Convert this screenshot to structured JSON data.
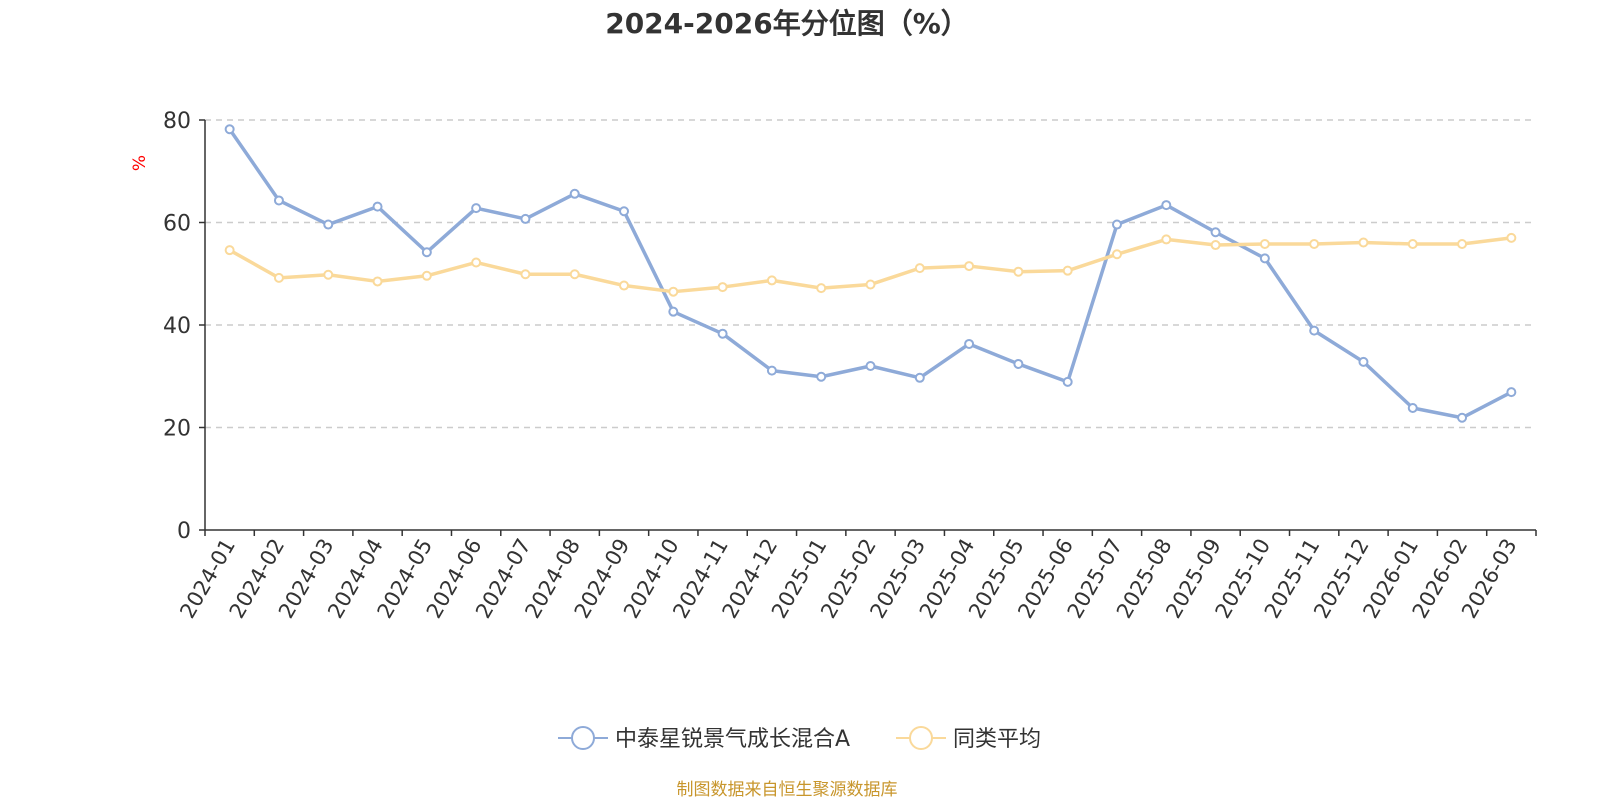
{
  "chart_data": {
    "type": "line",
    "title": "2024-2026年分位图（%）",
    "ylabel": "%",
    "ylim": [
      0,
      80
    ],
    "yticks": [
      0,
      20,
      40,
      60,
      80
    ],
    "grid": true,
    "legend_position": "bottom",
    "categories": [
      "2024-01",
      "2024-02",
      "2024-03",
      "2024-04",
      "2024-05",
      "2024-06",
      "2024-07",
      "2024-08",
      "2024-09",
      "2024-10",
      "2024-11",
      "2024-12",
      "2025-01",
      "2025-02",
      "2025-03",
      "2025-04",
      "2025-05",
      "2025-06",
      "2025-07",
      "2025-08",
      "2025-09",
      "2025-10",
      "2025-11",
      "2025-12",
      "2026-01",
      "2026-02",
      "2026-03"
    ],
    "series": [
      {
        "name": "中泰星锐景气成长混合A",
        "color": "#8eaad8",
        "values": [
          78.2,
          64.3,
          59.6,
          63.1,
          54.2,
          62.8,
          60.7,
          65.6,
          62.2,
          42.6,
          38.3,
          31.1,
          29.9,
          32.0,
          29.7,
          36.3,
          32.4,
          28.9,
          59.6,
          63.4,
          58.1,
          53.0,
          38.9,
          32.8,
          23.8,
          21.9,
          26.9
        ]
      },
      {
        "name": "同类平均",
        "color": "#fad99a",
        "values": [
          54.6,
          49.2,
          49.8,
          48.5,
          49.6,
          52.2,
          49.9,
          49.9,
          47.7,
          46.5,
          47.4,
          48.7,
          47.2,
          47.9,
          51.1,
          51.5,
          50.4,
          50.6,
          53.8,
          56.7,
          55.6,
          55.8,
          55.8,
          56.1,
          55.8,
          55.8,
          57.0
        ]
      }
    ]
  },
  "footer": "制图数据来自恒生聚源数据库"
}
